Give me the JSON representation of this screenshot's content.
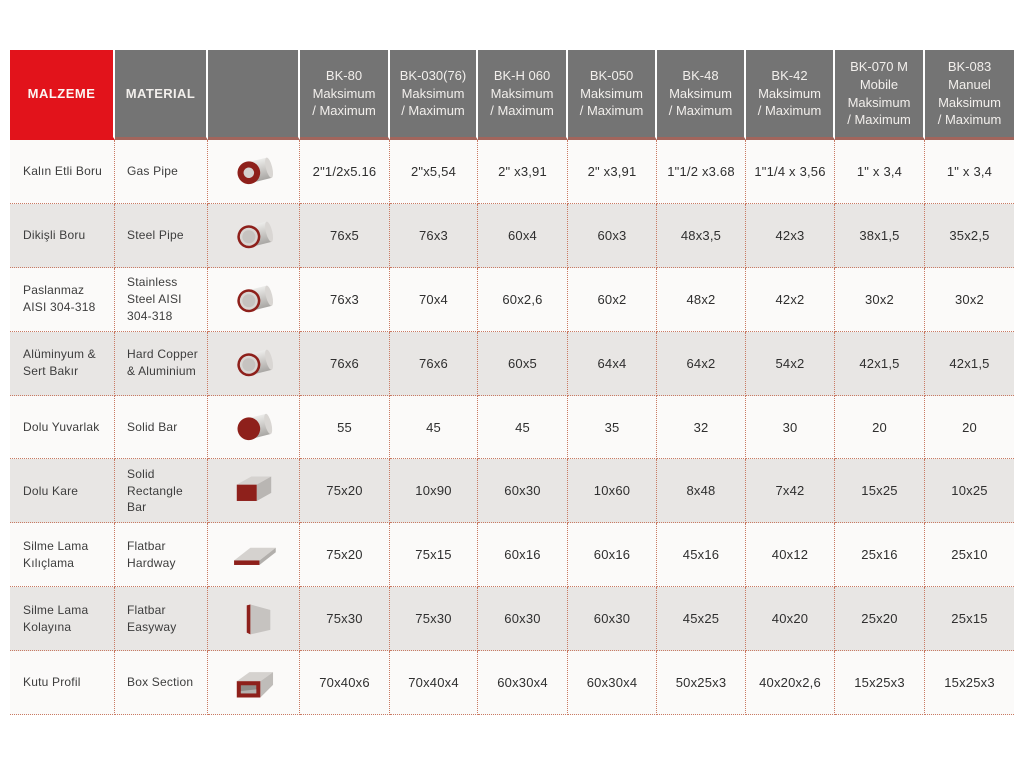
{
  "table": {
    "header": {
      "malzeme": "MALZEME",
      "material": "MATERIAL",
      "machines": [
        {
          "id": "bk-80",
          "text": "BK-80\nMaksimum\n/ Maximum"
        },
        {
          "id": "bk-030-76",
          "text": "BK-030(76)\nMaksimum\n/ Maximum"
        },
        {
          "id": "bk-h-060",
          "text": "BK-H 060\nMaksimum\n/ Maximum"
        },
        {
          "id": "bk-050",
          "text": "BK-050\nMaksimum\n/ Maximum"
        },
        {
          "id": "bk-48",
          "text": "BK-48\nMaksimum\n/ Maximum"
        },
        {
          "id": "bk-42",
          "text": "BK-42\nMaksimum\n/ Maximum"
        },
        {
          "id": "bk-070-m",
          "text": "BK-070 M\nMobile\nMaksimum\n/ Maximum"
        },
        {
          "id": "bk-083",
          "text": "BK-083\nManuel\nMaksimum\n/ Maximum"
        }
      ]
    },
    "rows": [
      {
        "malzeme": "Kalın Etli Boru",
        "material": "Gas Pipe",
        "icon": "thick-pipe",
        "values": [
          "2\"1/2x5.16",
          "2\"x5,54",
          "2\" x3,91",
          "2\" x3,91",
          "1\"1/2 x3.68",
          "1\"1/4 x 3,56",
          "1\" x 3,4",
          "1\" x 3,4"
        ]
      },
      {
        "malzeme": "Dikişli Boru",
        "material": "Steel Pipe",
        "icon": "thin-pipe",
        "values": [
          "76x5",
          "76x3",
          "60x4",
          "60x3",
          "48x3,5",
          "42x3",
          "38x1,5",
          "35x2,5"
        ]
      },
      {
        "malzeme": "Paslanmaz AISI 304-318",
        "material": "Stainless Steel AISI 304-318",
        "icon": "thin-pipe",
        "values": [
          "76x3",
          "70x4",
          "60x2,6",
          "60x2",
          "48x2",
          "42x2",
          "30x2",
          "30x2"
        ]
      },
      {
        "malzeme": "Alüminyum & Sert Bakır",
        "material": "Hard Copper & Aluminium",
        "icon": "thin-pipe",
        "values": [
          "76x6",
          "76x6",
          "60x5",
          "64x4",
          "64x2",
          "54x2",
          "42x1,5",
          "42x1,5"
        ]
      },
      {
        "malzeme": "Dolu Yuvarlak",
        "material": "Solid Bar",
        "icon": "solid-bar",
        "values": [
          "55",
          "45",
          "45",
          "35",
          "32",
          "30",
          "20",
          "20"
        ]
      },
      {
        "malzeme": "Dolu Kare",
        "material": "Solid Rectangle Bar",
        "icon": "solid-rectangle",
        "values": [
          "75x20",
          "10x90",
          "60x30",
          "10x60",
          "8x48",
          "7x42",
          "15x25",
          "10x25"
        ]
      },
      {
        "malzeme": "Silme Lama Kılıçlama",
        "material": "Flatbar Hardway",
        "icon": "flatbar-flat",
        "values": [
          "75x20",
          "75x15",
          "60x16",
          "60x16",
          "45x16",
          "40x12",
          "25x16",
          "25x10"
        ]
      },
      {
        "malzeme": "Silme Lama Kolayına",
        "material": "Flatbar Easyway",
        "icon": "flatbar-upright",
        "values": [
          "75x30",
          "75x30",
          "60x30",
          "60x30",
          "45x25",
          "40x20",
          "25x20",
          "25x15"
        ]
      },
      {
        "malzeme": "Kutu Profil",
        "material": "Box Section",
        "icon": "box-section",
        "values": [
          "70x40x6",
          "70x40x4",
          "60x30x4",
          "60x30x4",
          "50x25x3",
          "40x20x2,6",
          "15x25x3",
          "15x25x3"
        ]
      }
    ],
    "colors": {
      "accent_red": "#e2131b",
      "header_gray": "#747474",
      "header_underline": "#a2655c",
      "row_alt_gray": "#e8e6e4",
      "dotted_border": "#c97a63",
      "icon_maroon": "#8e201b"
    }
  }
}
